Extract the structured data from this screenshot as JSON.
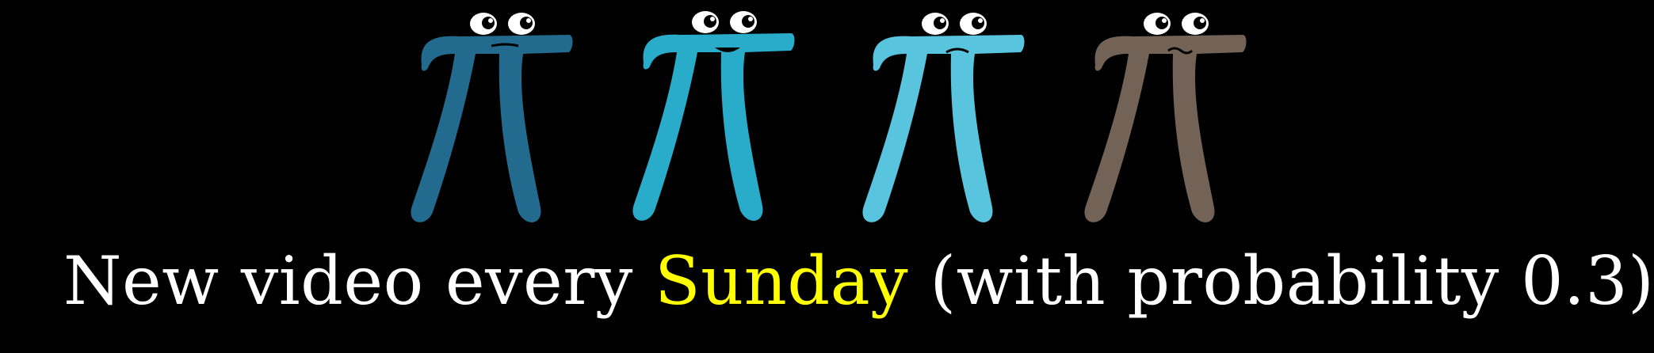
{
  "creatures": [
    {
      "name": "pi-creature-1",
      "body_color": "#236B8E"
    },
    {
      "name": "pi-creature-2",
      "body_color": "#29ABCA"
    },
    {
      "name": "pi-creature-3",
      "body_color": "#58C4DD"
    },
    {
      "name": "pi-creature-4",
      "body_color": "#736357"
    }
  ],
  "tagline": {
    "prefix": "New video every ",
    "highlight": "Sunday",
    "suffix": " (with probability 0.3)",
    "text_color": "#FFFFFF",
    "highlight_color": "#FFFF00"
  }
}
